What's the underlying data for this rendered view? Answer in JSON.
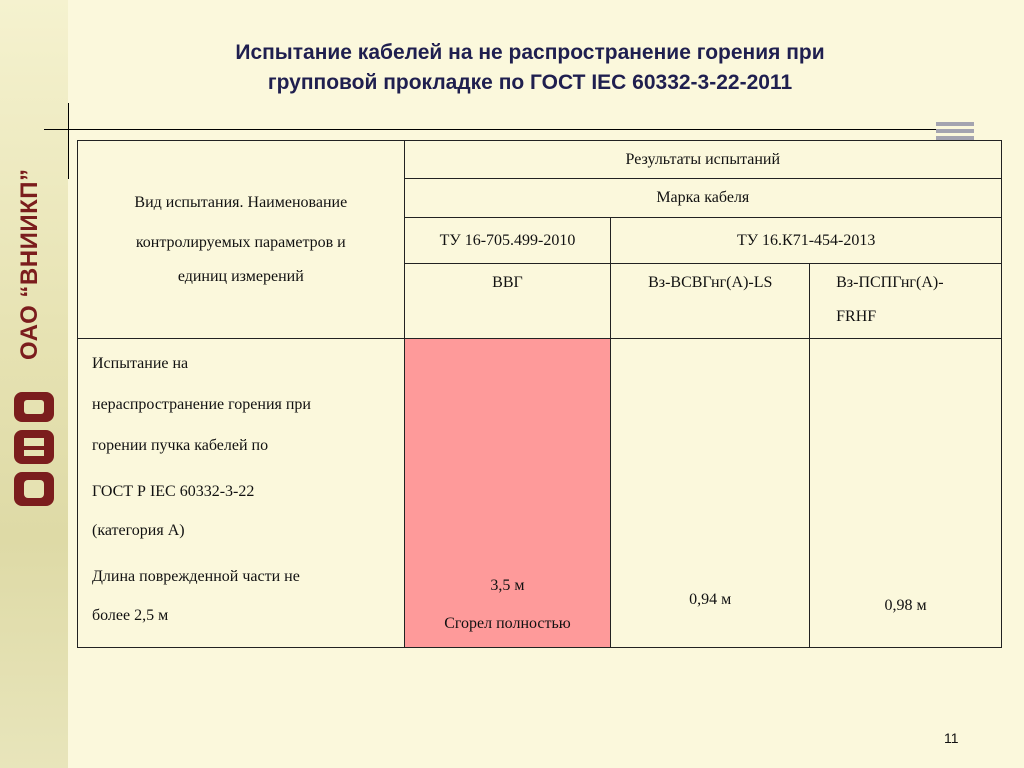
{
  "slide": {
    "title_line1": "Испытание кабелей на не распространение горения при",
    "title_line2": "групповой прокладке по ГОСТ IEC 60332-3-22-2011",
    "page_number": "11"
  },
  "sidebar": {
    "org_name": "ОАО “ВНИИКП”",
    "logo_icon": "vniikp-logo-icon"
  },
  "table": {
    "header_left_line1": "Вид испытания. Наименование",
    "header_left_line2": "контролируемых параметров и",
    "header_left_line3": "единиц измерений",
    "results_header": "Результаты испытаний",
    "brand_header": "Марка кабеля",
    "spec1": "ТУ 16-705.499-2010",
    "spec2": "ТУ 16.К71-454-2013",
    "cable1": "ВВГ",
    "cable2": "Вз-ВСВГнг(А)-LS",
    "cable3_line1": "Вз-ПСПГнг(А)-",
    "cable3_line2": "FRHF",
    "test_lines": [
      "Испытание на",
      "нераспространение горения при",
      "горении пучка кабелей по",
      "ГОСТ Р IEC 60332-3-22",
      "(категория А)",
      "Длина поврежденной части  не",
      "более 2,5 м"
    ],
    "value1": "3,5 м",
    "value1_note": "Сгорел полностью",
    "value2": "0,94 м",
    "value3": "0,98 м",
    "highlight_color": "#fe9a9a"
  }
}
